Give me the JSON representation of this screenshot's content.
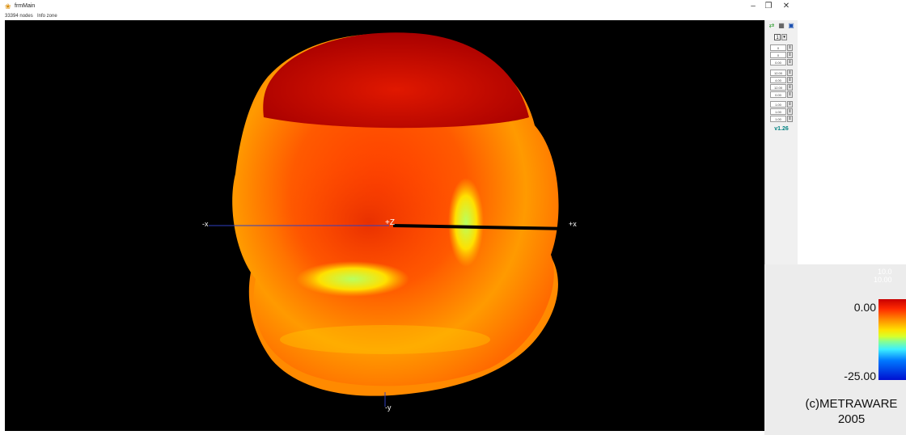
{
  "window": {
    "title": "frmMain",
    "icon": "app-icon",
    "controls": {
      "minimize": "–",
      "restore": "❐",
      "close": "✕"
    }
  },
  "status": {
    "nodes": "33394 nodes",
    "info": "Info zone"
  },
  "viewport": {
    "axes": {
      "neg_x": "-x",
      "pos_x": "+x",
      "pos_z": "+Z",
      "neg_y": "-y"
    }
  },
  "side_panel": {
    "toolbar_icons": [
      "rotate-tool-icon",
      "grid-tool-icon",
      "info-tool-icon"
    ],
    "page_selector": "1",
    "rotation_fields": [
      "0",
      "0",
      "0.00"
    ],
    "position_fields": [
      "12.00",
      "4.00",
      "12.00",
      "0.00"
    ],
    "scale_fields": [
      "1.00",
      "1.00",
      "1.00"
    ],
    "version": "v1.26"
  },
  "legend": {
    "faded_line_1": "10.0",
    "faded_line_2": "10.00",
    "max_label": "0.00",
    "min_label": "-25.00",
    "copyright_line_1": "(c)METRAWARE",
    "copyright_line_2": "2005",
    "colors": [
      "#c80000",
      "#ff2a00",
      "#ff8a00",
      "#ffe100",
      "#8cff8c",
      "#3cf0ff",
      "#0078ff",
      "#0010d0"
    ]
  }
}
